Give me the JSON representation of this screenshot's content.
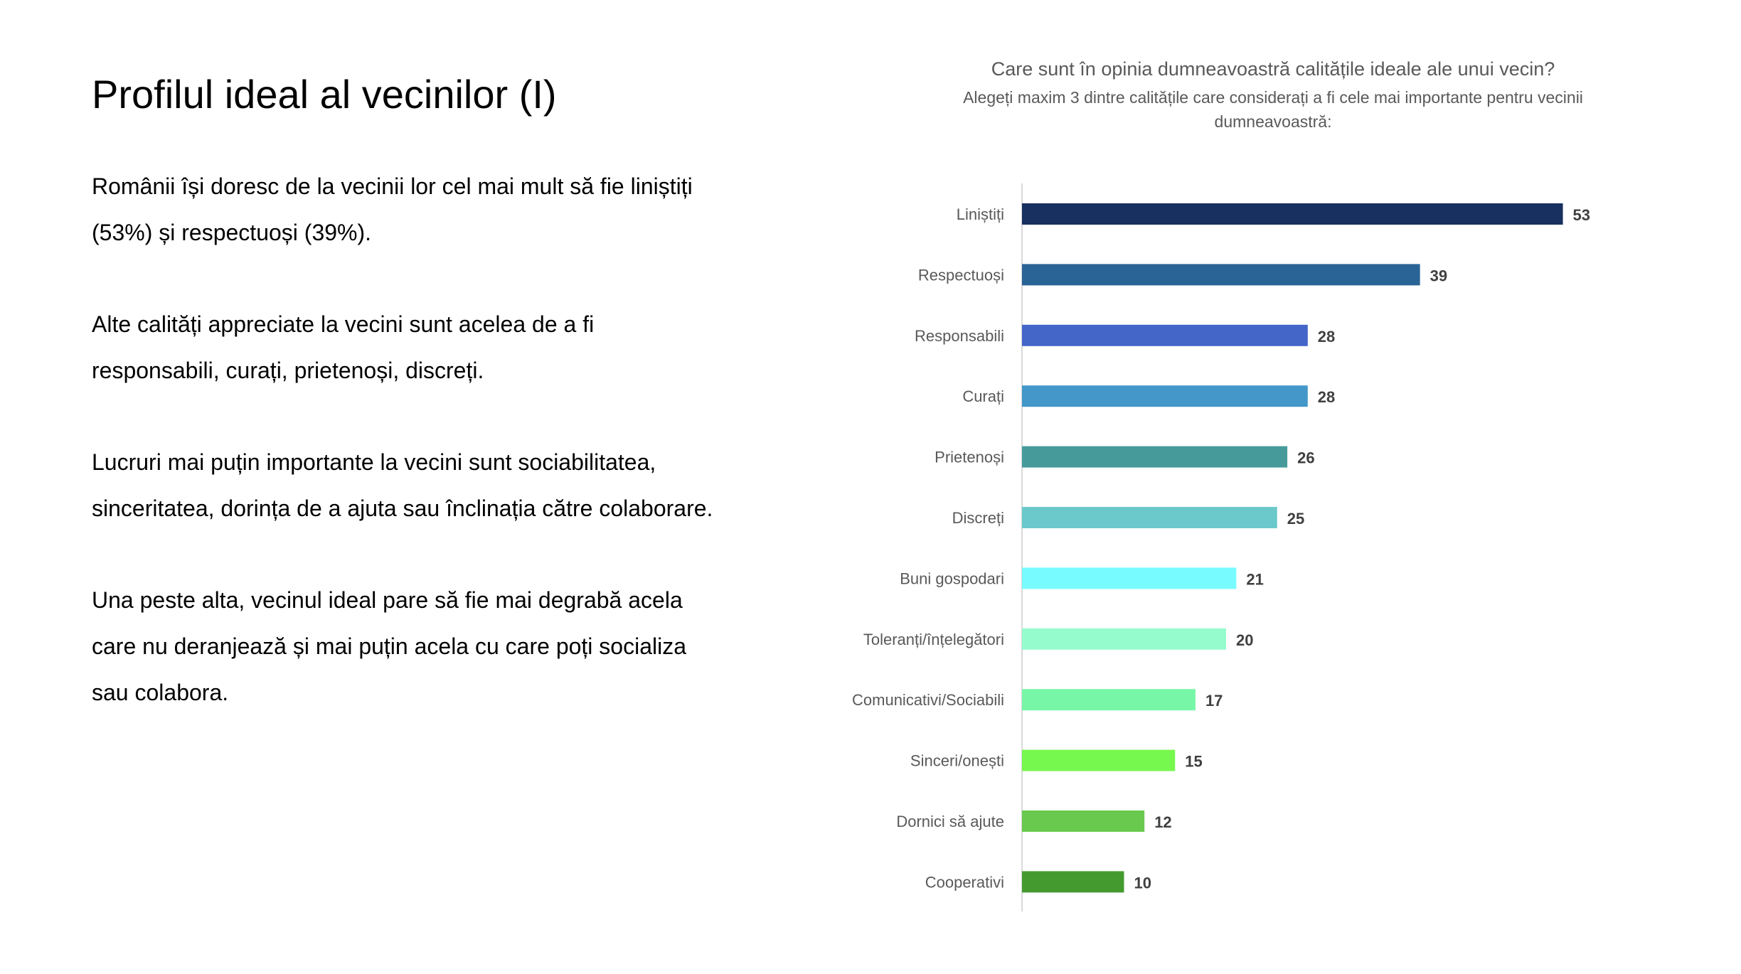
{
  "slide": {
    "title": "Profilul ideal al vecinilor (I)",
    "paragraphs": [
      "Românii își doresc de la vecinii lor cel mai mult să fie liniștiți (53%) și respectuoși (39%).",
      "Alte calități appreciate la vecini sunt acelea de a fi responsabili, curați, prietenoși, discreți.",
      "Lucruri mai puțin importante la vecini sunt sociabilitatea, sinceritatea, dorința de a ajuta sau înclinația către colaborare.",
      "Una peste alta, vecinul ideal pare să fie mai degrabă acela care nu deranjează și mai puțin acela cu care poți socializa sau colabora."
    ]
  },
  "chart_data": {
    "type": "bar",
    "orientation": "horizontal",
    "title": "Care sunt în opinia dumneavoastră calitățile ideale ale unui vecin?",
    "subtitle": "Alegeți maxim 3 dintre calitățile care considerați a fi cele mai importante pentru vecinii dumneavoastră:",
    "categories": [
      "Liniștiți",
      "Respectuoși",
      "Responsabili",
      "Curați",
      "Prietenoși",
      "Discreți",
      "Buni gospodari",
      "Toleranți/înțelegători",
      "Comunicativi/Sociabili",
      "Sinceri/onești",
      "Dornici să ajute",
      "Cooperativi"
    ],
    "values": [
      53,
      39,
      28,
      28,
      26,
      25,
      21,
      20,
      17,
      15,
      12,
      10
    ],
    "colors": [
      "#17305f",
      "#2a6496",
      "#4366c8",
      "#4397c9",
      "#469b9a",
      "#6bc9cb",
      "#78fbff",
      "#95fcce",
      "#78f6a7",
      "#77f84e",
      "#68c94e",
      "#459a2f"
    ],
    "data_labels": true,
    "grid": false,
    "legend": "none",
    "xlim": [
      0,
      60
    ]
  }
}
